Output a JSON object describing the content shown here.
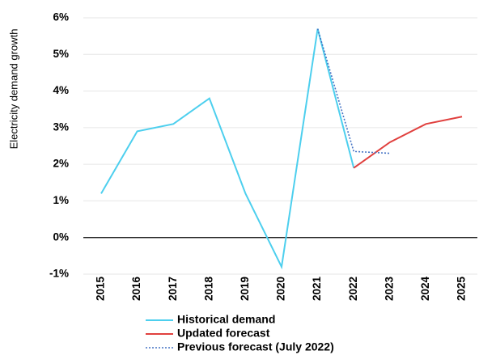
{
  "chart_data": {
    "type": "line",
    "ylabel": "Electricity demand growth",
    "categories": [
      "2015",
      "2016",
      "2017",
      "2018",
      "2019",
      "2020",
      "2021",
      "2022",
      "2023",
      "2024",
      "2025"
    ],
    "series": [
      {
        "name": "Historical demand",
        "color": "#4dcfee",
        "style": "solid",
        "values": [
          1.2,
          2.9,
          3.1,
          3.8,
          1.2,
          -0.8,
          5.7,
          1.9,
          null,
          null,
          null
        ]
      },
      {
        "name": "Updated forecast",
        "color": "#e0403e",
        "style": "solid",
        "values": [
          null,
          null,
          null,
          null,
          null,
          null,
          null,
          1.9,
          2.6,
          3.1,
          3.3
        ]
      },
      {
        "name": "Previous forecast (July 2022)",
        "color": "#4472c4",
        "style": "dotted",
        "values": [
          null,
          null,
          null,
          null,
          null,
          null,
          5.7,
          2.35,
          2.3,
          null,
          null
        ]
      }
    ],
    "ylim": [
      -1,
      6
    ],
    "yticks": [
      {
        "value": -1,
        "label": "-1%"
      },
      {
        "value": 0,
        "label": "0%"
      },
      {
        "value": 1,
        "label": "1%"
      },
      {
        "value": 2,
        "label": "2%"
      },
      {
        "value": 3,
        "label": "3%"
      },
      {
        "value": 4,
        "label": "4%"
      },
      {
        "value": 5,
        "label": "5%"
      },
      {
        "value": 6,
        "label": "6%"
      }
    ],
    "grid": true
  }
}
